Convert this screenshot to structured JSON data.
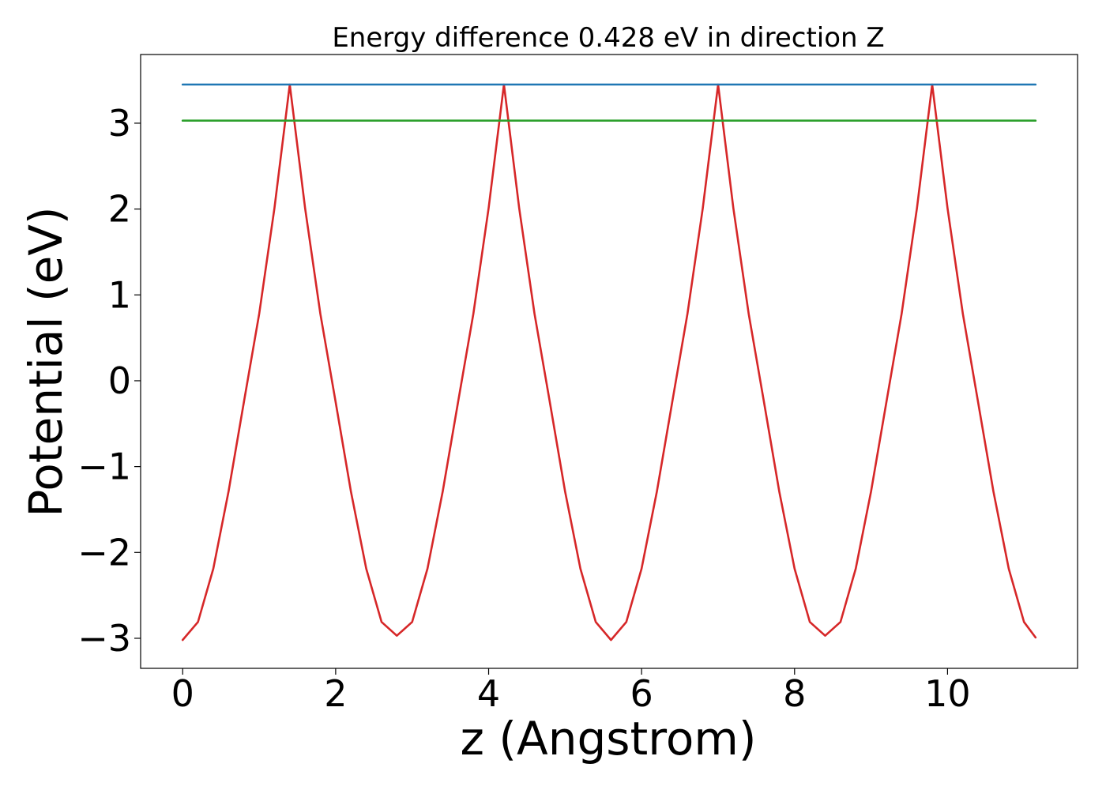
{
  "chart_data": {
    "type": "line",
    "title": "Energy difference 0.428 eV in direction Z",
    "xlabel": "z (Angstrom)",
    "ylabel": "Potential (eV)",
    "xlim": [
      -0.55,
      11.7
    ],
    "ylim": [
      -3.35,
      3.8
    ],
    "grid": false,
    "x_ticks": [
      {
        "value": 0,
        "label": "0"
      },
      {
        "value": 2,
        "label": "2"
      },
      {
        "value": 4,
        "label": "4"
      },
      {
        "value": 6,
        "label": "6"
      },
      {
        "value": 8,
        "label": "8"
      },
      {
        "value": 10,
        "label": "10"
      }
    ],
    "y_ticks": [
      {
        "value": -3,
        "label": "−3"
      },
      {
        "value": -2,
        "label": "−2"
      },
      {
        "value": -1,
        "label": "−1"
      },
      {
        "value": 0,
        "label": "0"
      },
      {
        "value": 1,
        "label": "1"
      },
      {
        "value": 2,
        "label": "2"
      },
      {
        "value": 3,
        "label": "3"
      }
    ],
    "series": [
      {
        "color": "#d62728",
        "kind": "curve",
        "x": [
          0.0,
          0.2,
          0.4,
          0.6,
          0.8,
          1.0,
          1.2,
          1.4,
          1.6,
          1.8,
          2.0,
          2.2,
          2.4,
          2.6,
          2.8,
          3.0,
          3.2,
          3.4,
          3.6,
          3.8,
          4.0,
          4.2,
          4.4,
          4.6,
          4.8,
          5.0,
          5.2,
          5.4,
          5.6,
          5.8,
          6.0,
          6.2,
          6.4,
          6.6,
          6.8,
          7.0,
          7.2,
          7.4,
          7.6,
          7.8,
          8.0,
          8.2,
          8.4,
          8.6,
          8.8,
          9.0,
          9.2,
          9.4,
          9.6,
          9.8,
          10.0,
          10.2,
          10.4,
          10.6,
          10.8,
          11.0,
          11.15
        ],
        "y": [
          -3.02,
          -2.81,
          -2.19,
          -1.29,
          -0.25,
          0.78,
          2.01,
          3.45,
          2.01,
          0.78,
          -0.25,
          -1.29,
          -2.19,
          -2.81,
          -2.97,
          -2.81,
          -2.19,
          -1.29,
          -0.25,
          0.78,
          2.01,
          3.45,
          2.01,
          0.78,
          -0.25,
          -1.29,
          -2.19,
          -2.81,
          -3.02,
          -2.81,
          -2.19,
          -1.29,
          -0.25,
          0.78,
          2.01,
          3.45,
          2.01,
          0.78,
          -0.25,
          -1.29,
          -2.19,
          -2.81,
          -2.97,
          -2.81,
          -2.19,
          -1.29,
          -0.25,
          0.78,
          2.01,
          3.45,
          2.01,
          0.78,
          -0.25,
          -1.29,
          -2.19,
          -2.81,
          -2.99
        ]
      },
      {
        "color": "#1f77b4",
        "kind": "hline",
        "x": [
          0.0,
          11.15
        ],
        "y": [
          3.45,
          3.45
        ]
      },
      {
        "color": "#2ca02c",
        "kind": "hline",
        "x": [
          0.0,
          11.15
        ],
        "y": [
          3.03,
          3.03
        ]
      }
    ]
  }
}
